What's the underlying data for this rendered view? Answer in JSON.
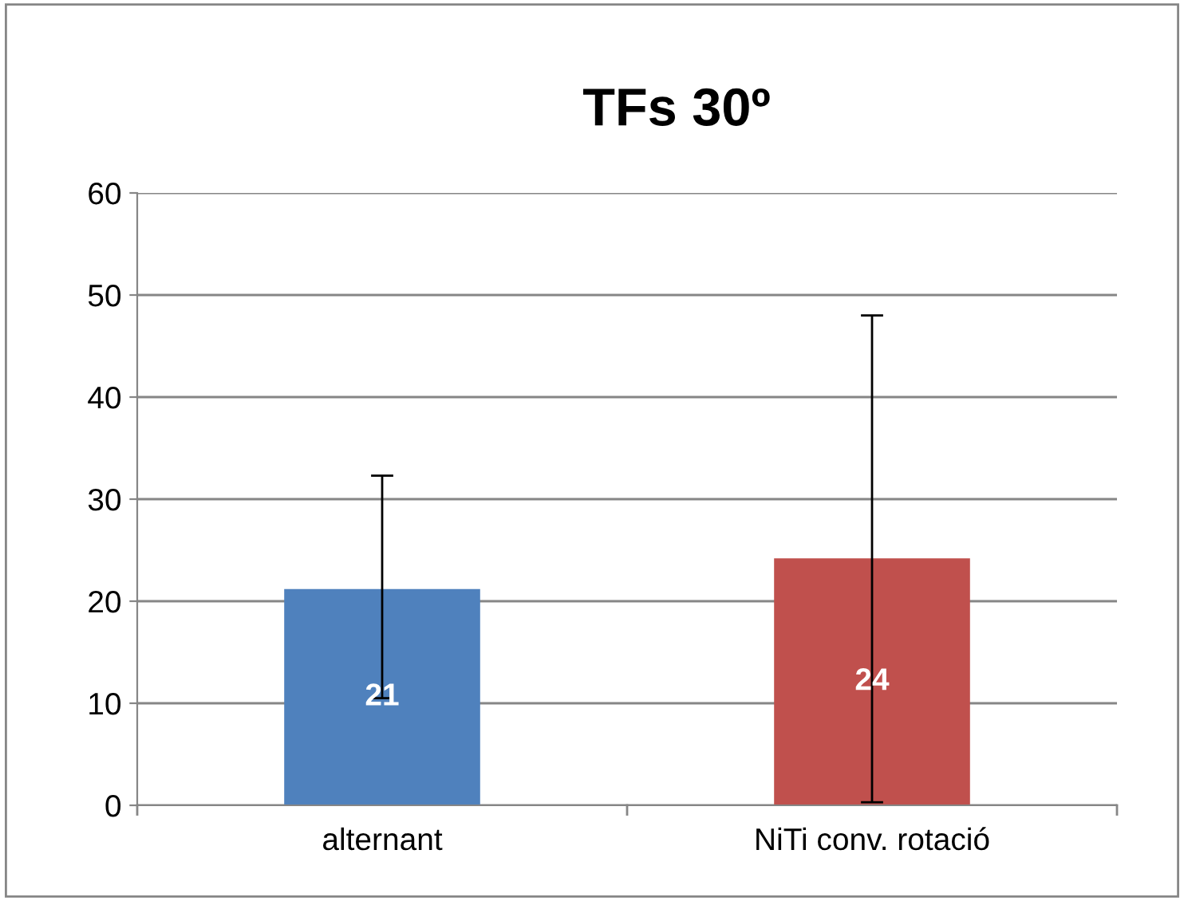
{
  "chart_data": {
    "type": "bar",
    "title": "TFs 30º",
    "categories": [
      "alternant",
      "NiTi conv. rotació"
    ],
    "values": [
      21.2,
      24.2
    ],
    "colors": [
      "#4f81bd",
      "#c0504d"
    ],
    "errors": [
      [
        10.5,
        32.3
      ],
      [
        0.3,
        48.0
      ]
    ],
    "value_labels": [
      "21",
      "24"
    ],
    "ylim": [
      0,
      60
    ],
    "yticks": [
      0,
      10,
      20,
      30,
      40,
      50,
      60
    ],
    "grid": "y",
    "legend": false
  }
}
